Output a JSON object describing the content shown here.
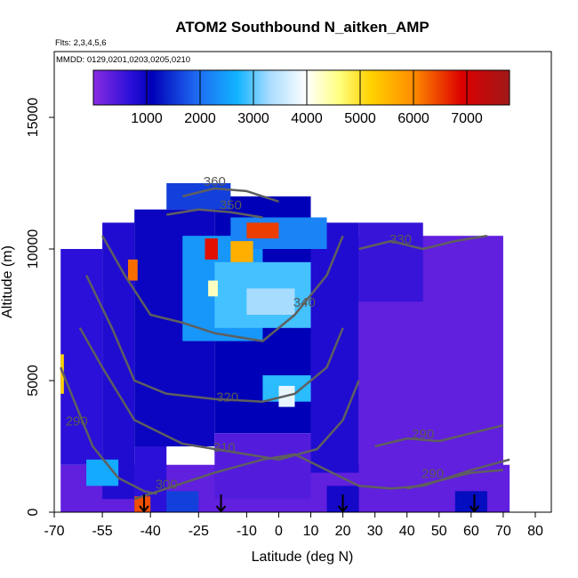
{
  "chart_data": {
    "type": "heatmap",
    "title": "ATOM2 Southbound N_aitken_AMP",
    "subtitle_flights": "Flts: 2,3,4,5,6",
    "subtitle_dates": "MMDD: 0129,0201,0203,0205,0210",
    "xlabel": "Latitude (deg N)",
    "ylabel": "Altitude (m)",
    "xlim": [
      -70,
      85
    ],
    "ylim": [
      0,
      17500
    ],
    "x_ticks": [
      {
        "value": -70,
        "label": "-70"
      },
      {
        "value": -55,
        "label": "-55"
      },
      {
        "value": -40,
        "label": "-40"
      },
      {
        "value": -25,
        "label": "-25"
      },
      {
        "value": -10,
        "label": "-10"
      },
      {
        "value": 0,
        "label": "0"
      },
      {
        "value": 10,
        "label": "10"
      },
      {
        "value": 20,
        "label": "20"
      },
      {
        "value": 30,
        "label": "30"
      },
      {
        "value": 40,
        "label": "40"
      },
      {
        "value": 50,
        "label": "50"
      },
      {
        "value": 60,
        "label": "60"
      },
      {
        "value": 70,
        "label": "70"
      },
      {
        "value": 80,
        "label": "80"
      }
    ],
    "y_ticks": [
      {
        "value": 0,
        "label": "0"
      },
      {
        "value": 5000,
        "label": "5000"
      },
      {
        "value": 10000,
        "label": "10000"
      },
      {
        "value": 15000,
        "label": "15000"
      }
    ],
    "colorbar": {
      "min": 0,
      "max": 7800,
      "ticks": [
        {
          "value": 1000,
          "label": "1000"
        },
        {
          "value": 2000,
          "label": "2000"
        },
        {
          "value": 3000,
          "label": "3000"
        },
        {
          "value": 4000,
          "label": "4000"
        },
        {
          "value": 5000,
          "label": "5000"
        },
        {
          "value": 6000,
          "label": "6000"
        },
        {
          "value": 7000,
          "label": "7000"
        }
      ],
      "stops": [
        {
          "v": 0,
          "c": "#8a2be2"
        },
        {
          "v": 700,
          "c": "#2a10d8"
        },
        {
          "v": 1100,
          "c": "#0000b8"
        },
        {
          "v": 1900,
          "c": "#1e66f0"
        },
        {
          "v": 2700,
          "c": "#12b4ff"
        },
        {
          "v": 3300,
          "c": "#a8dcff"
        },
        {
          "v": 4000,
          "c": "#ffffff"
        },
        {
          "v": 4600,
          "c": "#ffff80"
        },
        {
          "v": 5200,
          "c": "#ffd200"
        },
        {
          "v": 6000,
          "c": "#ff8c00"
        },
        {
          "v": 6900,
          "c": "#dd0000"
        },
        {
          "v": 7800,
          "c": "#a01818"
        }
      ]
    },
    "cells": [
      {
        "x": [
          -68,
          72
        ],
        "y": [
          0,
          1800
        ],
        "v": 300
      },
      {
        "x": [
          -68,
          -55
        ],
        "y": [
          1800,
          10000
        ],
        "v": 700
      },
      {
        "x": [
          -55,
          -45
        ],
        "y": [
          500,
          11000
        ],
        "v": 800
      },
      {
        "x": [
          -45,
          -35
        ],
        "y": [
          0,
          2500
        ],
        "v": 700
      },
      {
        "x": [
          -45,
          -20
        ],
        "y": [
          2500,
          11500
        ],
        "v": 1000
      },
      {
        "x": [
          -20,
          10
        ],
        "y": [
          3000,
          12000
        ],
        "v": 1100
      },
      {
        "x": [
          -20,
          10
        ],
        "y": [
          500,
          3000
        ],
        "v": 400
      },
      {
        "x": [
          10,
          25
        ],
        "y": [
          1500,
          11000
        ],
        "v": 800
      },
      {
        "x": [
          25,
          70
        ],
        "y": [
          1500,
          10500
        ],
        "v": 300
      },
      {
        "x": [
          25,
          45
        ],
        "y": [
          8000,
          11000
        ],
        "v": 600
      },
      {
        "x": [
          -35,
          -15
        ],
        "y": [
          11500,
          12500
        ],
        "v": 1600
      },
      {
        "x": [
          -30,
          -5
        ],
        "y": [
          6500,
          10500
        ],
        "v": 2400
      },
      {
        "x": [
          -20,
          10
        ],
        "y": [
          7000,
          9500
        ],
        "v": 2900
      },
      {
        "x": [
          -10,
          5
        ],
        "y": [
          7500,
          8500
        ],
        "v": 3300
      },
      {
        "x": [
          -15,
          15
        ],
        "y": [
          10000,
          11200
        ],
        "v": 2200
      },
      {
        "x": [
          -10,
          0
        ],
        "y": [
          10400,
          11000
        ],
        "v": 6500
      },
      {
        "x": [
          -15,
          -8
        ],
        "y": [
          9500,
          10300
        ],
        "v": 5600
      },
      {
        "x": [
          -23,
          -19
        ],
        "y": [
          9600,
          10400
        ],
        "v": 6800
      },
      {
        "x": [
          -47,
          -44
        ],
        "y": [
          8800,
          9600
        ],
        "v": 6200
      },
      {
        "x": [
          -22,
          -19
        ],
        "y": [
          8200,
          8800
        ],
        "v": 4300
      },
      {
        "x": [
          -68,
          -67
        ],
        "y": [
          4500,
          6000
        ],
        "v": 5200
      },
      {
        "x": [
          -45,
          -40
        ],
        "y": [
          0,
          600
        ],
        "v": 6400
      },
      {
        "x": [
          -60,
          -50
        ],
        "y": [
          1000,
          2000
        ],
        "v": 2600
      },
      {
        "x": [
          -35,
          -25
        ],
        "y": [
          0,
          800
        ],
        "v": 1600
      },
      {
        "x": [
          -5,
          10
        ],
        "y": [
          4200,
          5200
        ],
        "v": 2800
      },
      {
        "x": [
          0,
          5
        ],
        "y": [
          4000,
          4800
        ],
        "v": 3800
      },
      {
        "x": [
          55,
          65
        ],
        "y": [
          0,
          800
        ],
        "v": 1200
      },
      {
        "x": [
          15,
          25
        ],
        "y": [
          0,
          1000
        ],
        "v": 900
      }
    ],
    "contours": [
      {
        "label": "290",
        "label_at": [
          -63,
          3300
        ],
        "points": [
          [
            -68,
            5500
          ],
          [
            -63,
            4000
          ],
          [
            -58,
            2500
          ],
          [
            -50,
            1300
          ],
          [
            -42,
            800
          ],
          [
            -38,
            700
          ]
        ]
      },
      {
        "label": "300",
        "label_at": [
          -35,
          900
        ],
        "points": [
          [
            -45,
            500
          ],
          [
            -35,
            900
          ],
          [
            -20,
            1500
          ],
          [
            -5,
            2000
          ],
          [
            5,
            2200
          ],
          [
            15,
            1600
          ],
          [
            25,
            1000
          ],
          [
            35,
            900
          ],
          [
            45,
            1000
          ],
          [
            60,
            1600
          ],
          [
            72,
            2000
          ]
        ]
      },
      {
        "label": "310",
        "label_at": [
          -17,
          2300
        ],
        "points": [
          [
            -62,
            7000
          ],
          [
            -55,
            5500
          ],
          [
            -45,
            3500
          ],
          [
            -30,
            2600
          ],
          [
            -15,
            2300
          ],
          [
            0,
            2000
          ],
          [
            12,
            2400
          ],
          [
            20,
            3500
          ],
          [
            25,
            5000
          ]
        ]
      },
      {
        "label": "320",
        "label_at": [
          -16,
          4200
        ],
        "points": [
          [
            -60,
            9000
          ],
          [
            -52,
            7000
          ],
          [
            -45,
            5000
          ],
          [
            -35,
            4500
          ],
          [
            -20,
            4300
          ],
          [
            -5,
            4200
          ],
          [
            5,
            4500
          ],
          [
            15,
            5500
          ],
          [
            20,
            7000
          ]
        ]
      },
      {
        "label": "340",
        "label_at": [
          8,
          7800
        ],
        "points": [
          [
            -55,
            10500
          ],
          [
            -48,
            9000
          ],
          [
            -40,
            7500
          ],
          [
            -30,
            7200
          ],
          [
            -20,
            6800
          ],
          [
            -5,
            6500
          ],
          [
            5,
            7500
          ],
          [
            15,
            9000
          ],
          [
            20,
            10500
          ]
        ]
      },
      {
        "label": "330",
        "label_at": [
          38,
          10200
        ],
        "points": [
          [
            25,
            10000
          ],
          [
            35,
            10300
          ],
          [
            45,
            10000
          ],
          [
            55,
            10300
          ],
          [
            65,
            10500
          ]
        ]
      },
      {
        "label": "290",
        "label_at": [
          45,
          2800
        ],
        "points": [
          [
            30,
            2500
          ],
          [
            40,
            2800
          ],
          [
            50,
            2700
          ],
          [
            60,
            3000
          ],
          [
            70,
            3300
          ]
        ]
      },
      {
        "label": "290",
        "label_at": [
          48,
          1300
        ],
        "points": [
          [
            40,
            900
          ],
          [
            50,
            1200
          ],
          [
            60,
            1500
          ],
          [
            70,
            1600
          ]
        ]
      },
      {
        "label": "360",
        "label_at": [
          -20,
          12400
        ],
        "points": [
          [
            -30,
            12000
          ],
          [
            -20,
            12300
          ],
          [
            -10,
            12200
          ],
          [
            0,
            11800
          ]
        ]
      },
      {
        "label": "350",
        "label_at": [
          -15,
          11500
        ],
        "points": [
          [
            -35,
            11300
          ],
          [
            -25,
            11500
          ],
          [
            -15,
            11400
          ],
          [
            -5,
            11200
          ]
        ]
      }
    ],
    "arrows": [
      {
        "x": -42,
        "y": 0
      },
      {
        "x": -18,
        "y": 0
      },
      {
        "x": 20,
        "y": 0
      },
      {
        "x": 61,
        "y": 0
      }
    ]
  }
}
